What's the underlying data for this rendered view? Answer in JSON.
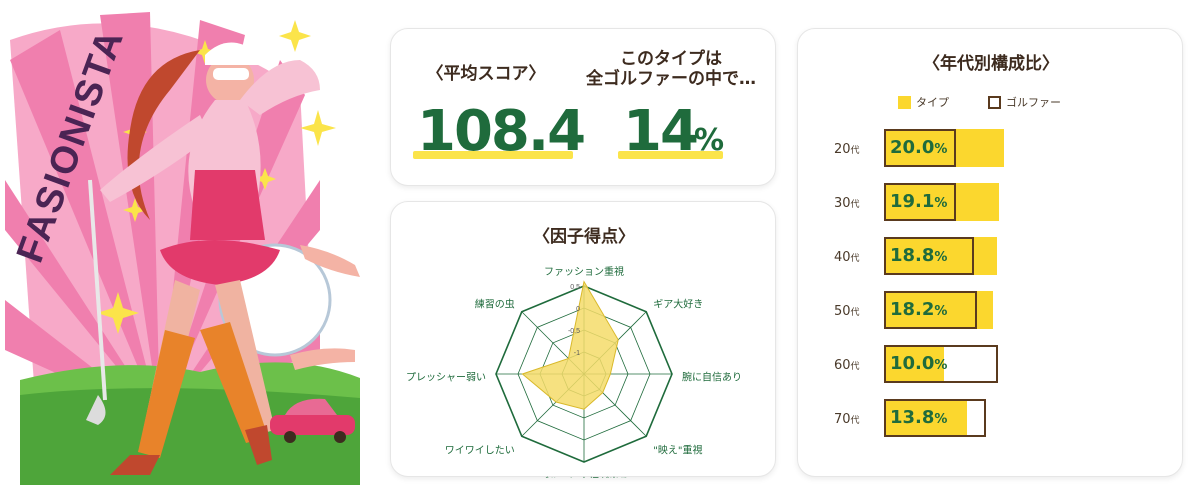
{
  "illustration": {
    "logo_text": "FASIONISTA"
  },
  "score_card": {
    "avg_heading": "〈平均スコア〉",
    "avg_value": "108.4",
    "type_heading_line1": "このタイプは",
    "type_heading_line2": "全ゴルファーの中で…",
    "type_pct_value": "14",
    "type_pct_unit": "%"
  },
  "factor_card": {
    "heading": "〈因子得点〉"
  },
  "age_card": {
    "heading": "〈年代別構成比〉",
    "legend_type": "タイプ",
    "legend_golfer": "ゴルファー"
  },
  "colors": {
    "accent_green": "#1f6b3c",
    "highlight_yellow": "#fbe44a",
    "bar_yellow": "#fbd72e",
    "radar_fill": "#f4dc6a",
    "brown": "#5a3a1e"
  },
  "chart_data": [
    {
      "type": "radar",
      "title": "〈因子得点〉",
      "axes": [
        "ファッション重視",
        "ギア大好き",
        "腕に自信あり",
        "\"映え\"重視",
        "ゴルフに人柄が出る",
        "ワイワイしたい",
        "プレッシャー弱い",
        "練習の虫"
      ],
      "ticks": [
        "0.5",
        "0",
        "-0.5",
        "-1"
      ],
      "range": [
        -1.5,
        0.5
      ],
      "series": [
        {
          "values": [
            0.6,
            -0.4,
            -0.9,
            -0.9,
            -0.7,
            -0.6,
            -0.1,
            -1.0
          ]
        }
      ],
      "grid": true
    },
    {
      "type": "bar",
      "title": "〈年代別構成比〉",
      "categories": [
        "20",
        "30",
        "40",
        "50",
        "60",
        "70"
      ],
      "category_suffix": "代",
      "series": [
        {
          "name": "タイプ",
          "values": [
            20.0,
            19.1,
            18.8,
            18.2,
            10.0,
            13.8
          ]
        },
        {
          "name": "ゴルファー",
          "values": [
            12.0,
            12.0,
            15.0,
            15.5,
            19.0,
            17.0
          ]
        }
      ],
      "value_labels": [
        "20.0",
        "19.1",
        "18.8",
        "18.2",
        "10.0",
        "13.8"
      ],
      "value_unit": "%",
      "xlim": [
        0,
        22
      ],
      "orientation": "horizontal",
      "legend": "top"
    }
  ]
}
